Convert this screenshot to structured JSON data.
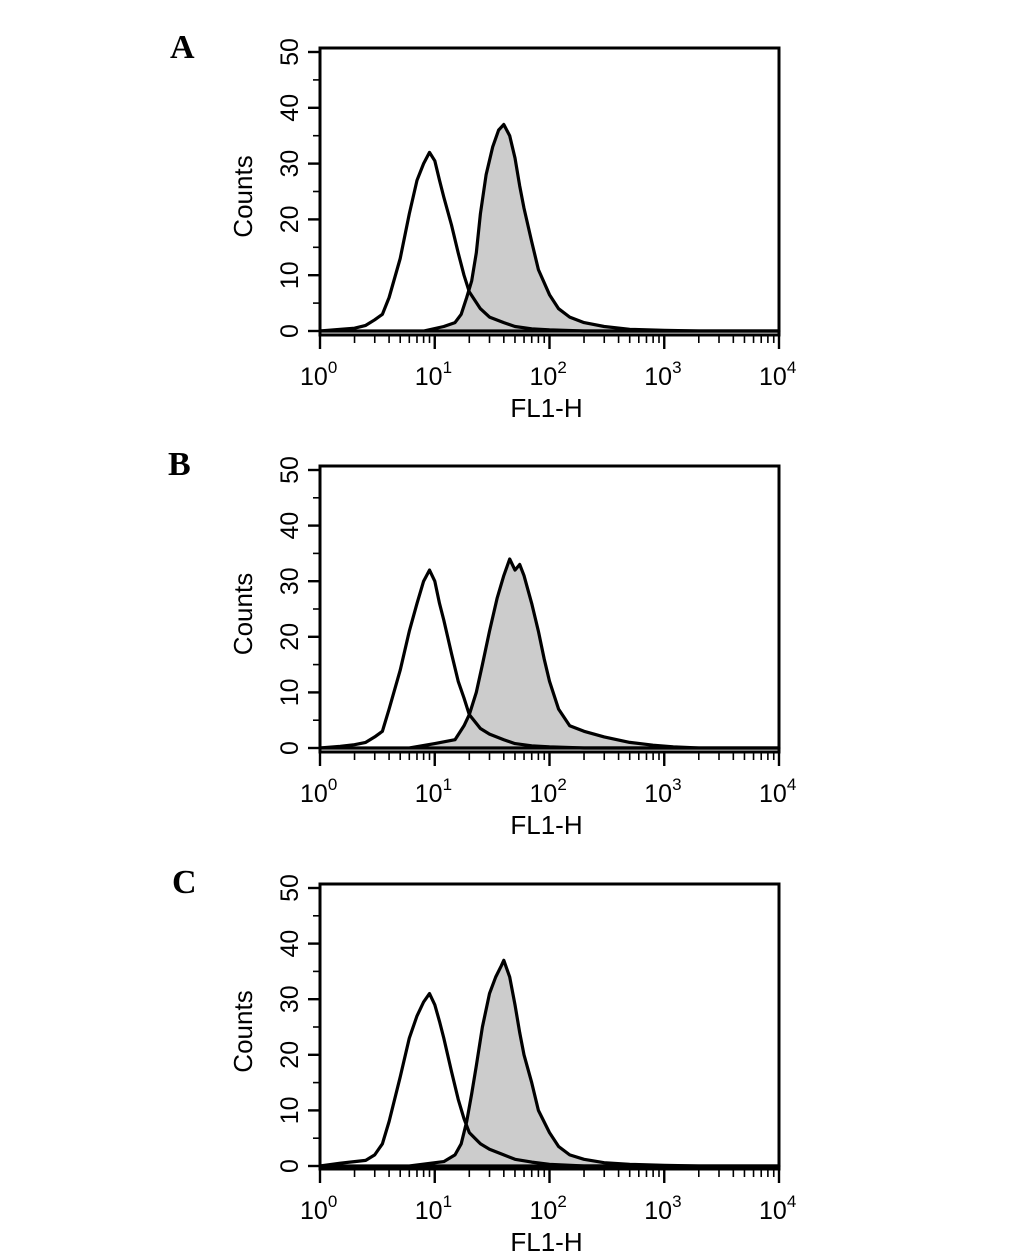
{
  "chart_data": [
    {
      "type": "area",
      "panel_label": "A",
      "xlabel": "FL1-H",
      "ylabel": "Counts",
      "xscale": "log",
      "xlim": [
        1,
        10000
      ],
      "ylim": [
        0,
        50
      ],
      "x_ticks": [
        {
          "base": "10",
          "exp": "0"
        },
        {
          "base": "10",
          "exp": "1"
        },
        {
          "base": "10",
          "exp": "2"
        },
        {
          "base": "10",
          "exp": "3"
        },
        {
          "base": "10",
          "exp": "4"
        }
      ],
      "y_ticks": [
        "0",
        "10",
        "20",
        "30",
        "40",
        "50"
      ],
      "legend": "none",
      "grid": false,
      "series": [
        {
          "style": "outline",
          "color": "#000000",
          "points": [
            [
              1,
              0
            ],
            [
              1.5,
              0.3
            ],
            [
              2,
              0.5
            ],
            [
              2.5,
              1
            ],
            [
              3,
              2
            ],
            [
              3.5,
              3
            ],
            [
              4,
              6
            ],
            [
              5,
              13
            ],
            [
              6,
              21
            ],
            [
              7,
              27
            ],
            [
              8,
              30
            ],
            [
              9,
              32
            ],
            [
              10,
              30.5
            ],
            [
              11,
              27
            ],
            [
              12,
              24
            ],
            [
              14,
              19
            ],
            [
              16,
              14
            ],
            [
              18,
              10
            ],
            [
              20,
              7
            ],
            [
              25,
              4
            ],
            [
              30,
              2.5
            ],
            [
              40,
              1.5
            ],
            [
              50,
              0.8
            ],
            [
              70,
              0.4
            ],
            [
              100,
              0.2
            ],
            [
              200,
              0
            ],
            [
              10000,
              0
            ]
          ]
        },
        {
          "style": "filled",
          "color": "#000000",
          "fill": "#cccccc",
          "points": [
            [
              1,
              0
            ],
            [
              8,
              0
            ],
            [
              12,
              0.8
            ],
            [
              15,
              1.5
            ],
            [
              17,
              3
            ],
            [
              19,
              6
            ],
            [
              21,
              9
            ],
            [
              23,
              14
            ],
            [
              25,
              21
            ],
            [
              28,
              28
            ],
            [
              32,
              33
            ],
            [
              36,
              36
            ],
            [
              40,
              37
            ],
            [
              45,
              35
            ],
            [
              50,
              31
            ],
            [
              55,
              26
            ],
            [
              60,
              22
            ],
            [
              70,
              16
            ],
            [
              80,
              11
            ],
            [
              100,
              6.5
            ],
            [
              120,
              4
            ],
            [
              150,
              2.5
            ],
            [
              200,
              1.5
            ],
            [
              300,
              0.8
            ],
            [
              500,
              0.3
            ],
            [
              1000,
              0.1
            ],
            [
              2000,
              0
            ],
            [
              10000,
              0
            ]
          ]
        }
      ]
    },
    {
      "type": "area",
      "panel_label": "B",
      "xlabel": "FL1-H",
      "ylabel": "Counts",
      "xscale": "log",
      "xlim": [
        1,
        10000
      ],
      "ylim": [
        0,
        50
      ],
      "x_ticks": [
        {
          "base": "10",
          "exp": "0"
        },
        {
          "base": "10",
          "exp": "1"
        },
        {
          "base": "10",
          "exp": "2"
        },
        {
          "base": "10",
          "exp": "3"
        },
        {
          "base": "10",
          "exp": "4"
        }
      ],
      "y_ticks": [
        "0",
        "10",
        "20",
        "30",
        "40",
        "50"
      ],
      "legend": "none",
      "grid": false,
      "series": [
        {
          "style": "outline",
          "color": "#000000",
          "points": [
            [
              1,
              0
            ],
            [
              1.5,
              0.3
            ],
            [
              2,
              0.6
            ],
            [
              2.5,
              1
            ],
            [
              3,
              2
            ],
            [
              3.5,
              3
            ],
            [
              4,
              7
            ],
            [
              5,
              14
            ],
            [
              6,
              21
            ],
            [
              7,
              26
            ],
            [
              8,
              30
            ],
            [
              9,
              32
            ],
            [
              10,
              30
            ],
            [
              11,
              26
            ],
            [
              12,
              23
            ],
            [
              14,
              17
            ],
            [
              16,
              12
            ],
            [
              18,
              9
            ],
            [
              20,
              6
            ],
            [
              25,
              3.5
            ],
            [
              30,
              2.5
            ],
            [
              40,
              1.5
            ],
            [
              50,
              0.8
            ],
            [
              70,
              0.4
            ],
            [
              100,
              0.2
            ],
            [
              200,
              0
            ],
            [
              10000,
              0
            ]
          ]
        },
        {
          "style": "filled",
          "color": "#000000",
          "fill": "#cccccc",
          "points": [
            [
              1,
              0
            ],
            [
              6,
              0
            ],
            [
              10,
              0.8
            ],
            [
              15,
              1.5
            ],
            [
              18,
              4
            ],
            [
              20,
              6
            ],
            [
              23,
              10
            ],
            [
              26,
              15
            ],
            [
              30,
              21
            ],
            [
              35,
              27
            ],
            [
              40,
              31
            ],
            [
              45,
              34
            ],
            [
              50,
              32
            ],
            [
              55,
              33
            ],
            [
              60,
              31
            ],
            [
              70,
              26
            ],
            [
              80,
              21
            ],
            [
              90,
              16
            ],
            [
              100,
              12
            ],
            [
              120,
              7
            ],
            [
              150,
              4
            ],
            [
              200,
              3
            ],
            [
              300,
              2
            ],
            [
              500,
              1
            ],
            [
              800,
              0.5
            ],
            [
              1200,
              0.2
            ],
            [
              2000,
              0
            ],
            [
              10000,
              0
            ]
          ]
        }
      ]
    },
    {
      "type": "area",
      "panel_label": "C",
      "xlabel": "FL1-H",
      "ylabel": "Counts",
      "xscale": "log",
      "xlim": [
        1,
        10000
      ],
      "ylim": [
        0,
        50
      ],
      "x_ticks": [
        {
          "base": "10",
          "exp": "0"
        },
        {
          "base": "10",
          "exp": "1"
        },
        {
          "base": "10",
          "exp": "2"
        },
        {
          "base": "10",
          "exp": "3"
        },
        {
          "base": "10",
          "exp": "4"
        }
      ],
      "y_ticks": [
        "0",
        "10",
        "20",
        "30",
        "40",
        "50"
      ],
      "legend": "none",
      "grid": false,
      "series": [
        {
          "style": "outline",
          "color": "#000000",
          "points": [
            [
              1,
              0
            ],
            [
              1.5,
              0.5
            ],
            [
              2,
              0.8
            ],
            [
              2.5,
              1
            ],
            [
              3,
              2
            ],
            [
              3.5,
              4
            ],
            [
              4,
              8
            ],
            [
              5,
              16
            ],
            [
              6,
              23
            ],
            [
              7,
              27
            ],
            [
              8,
              29.5
            ],
            [
              9,
              31
            ],
            [
              10,
              29
            ],
            [
              11,
              26
            ],
            [
              12,
              23
            ],
            [
              14,
              17
            ],
            [
              16,
              12
            ],
            [
              18,
              8.5
            ],
            [
              20,
              6
            ],
            [
              25,
              4
            ],
            [
              30,
              3
            ],
            [
              40,
              2
            ],
            [
              50,
              1.2
            ],
            [
              70,
              0.7
            ],
            [
              100,
              0.3
            ],
            [
              200,
              0
            ],
            [
              10000,
              0
            ]
          ]
        },
        {
          "style": "filled",
          "color": "#000000",
          "fill": "#cccccc",
          "points": [
            [
              1,
              0
            ],
            [
              6,
              0
            ],
            [
              12,
              0.8
            ],
            [
              15,
              2
            ],
            [
              17,
              4
            ],
            [
              19,
              8
            ],
            [
              21,
              13
            ],
            [
              23,
              18
            ],
            [
              26,
              25
            ],
            [
              30,
              31
            ],
            [
              34,
              34
            ],
            [
              38,
              36
            ],
            [
              40,
              37
            ],
            [
              45,
              34
            ],
            [
              50,
              29
            ],
            [
              55,
              24
            ],
            [
              60,
              20
            ],
            [
              70,
              15
            ],
            [
              80,
              10
            ],
            [
              100,
              6
            ],
            [
              120,
              3.5
            ],
            [
              150,
              2
            ],
            [
              200,
              1.2
            ],
            [
              300,
              0.6
            ],
            [
              500,
              0.3
            ],
            [
              1000,
              0.1
            ],
            [
              2000,
              0
            ],
            [
              10000,
              0
            ]
          ]
        }
      ]
    }
  ]
}
